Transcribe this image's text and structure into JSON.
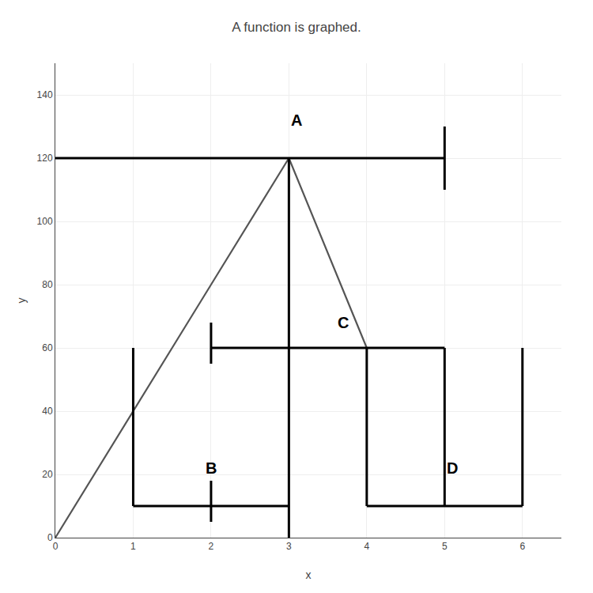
{
  "chart_data": {
    "type": "line",
    "title": "A function is graphed.",
    "xlabel": "x",
    "ylabel": "y",
    "x": [
      0,
      3,
      4
    ],
    "values": [
      0,
      120,
      60
    ],
    "color": "#555555",
    "xlim": [
      0,
      6.5
    ],
    "ylim": [
      0,
      150
    ],
    "xticks": [
      0,
      1,
      2,
      3,
      4,
      5,
      6
    ],
    "yticks": [
      0,
      20,
      40,
      60,
      80,
      100,
      120,
      140
    ],
    "grid": true,
    "segment_color": "#000000",
    "segments": [
      {
        "x": [
          0,
          5.0
        ],
        "y": [
          120,
          120
        ]
      },
      {
        "x": [
          2.0,
          5.0
        ],
        "y": [
          60,
          60
        ]
      },
      {
        "x": [
          1.0,
          3.0
        ],
        "y": [
          10,
          10
        ]
      },
      {
        "x": [
          4.0,
          6.0
        ],
        "y": [
          10,
          10
        ]
      },
      {
        "x": [
          3,
          3
        ],
        "y": [
          0,
          120
        ]
      },
      {
        "x": [
          1,
          1
        ],
        "y": [
          10,
          60
        ]
      },
      {
        "x": [
          5,
          5
        ],
        "y": [
          110,
          130
        ]
      },
      {
        "x": [
          5,
          5
        ],
        "y": [
          10,
          60
        ]
      },
      {
        "x": [
          4,
          4
        ],
        "y": [
          10,
          60
        ]
      },
      {
        "x": [
          6,
          6
        ],
        "y": [
          10,
          60
        ]
      },
      {
        "x": [
          2,
          2
        ],
        "y": [
          55,
          68
        ]
      },
      {
        "x": [
          2,
          2
        ],
        "y": [
          5,
          18
        ]
      }
    ],
    "annotations": [
      {
        "x": 3.1,
        "y": 132,
        "text": "A"
      },
      {
        "x": 2.0,
        "y": 22,
        "text": "B"
      },
      {
        "x": 3.7,
        "y": 68,
        "text": "C"
      },
      {
        "x": 5.1,
        "y": 22,
        "text": "D"
      }
    ]
  }
}
